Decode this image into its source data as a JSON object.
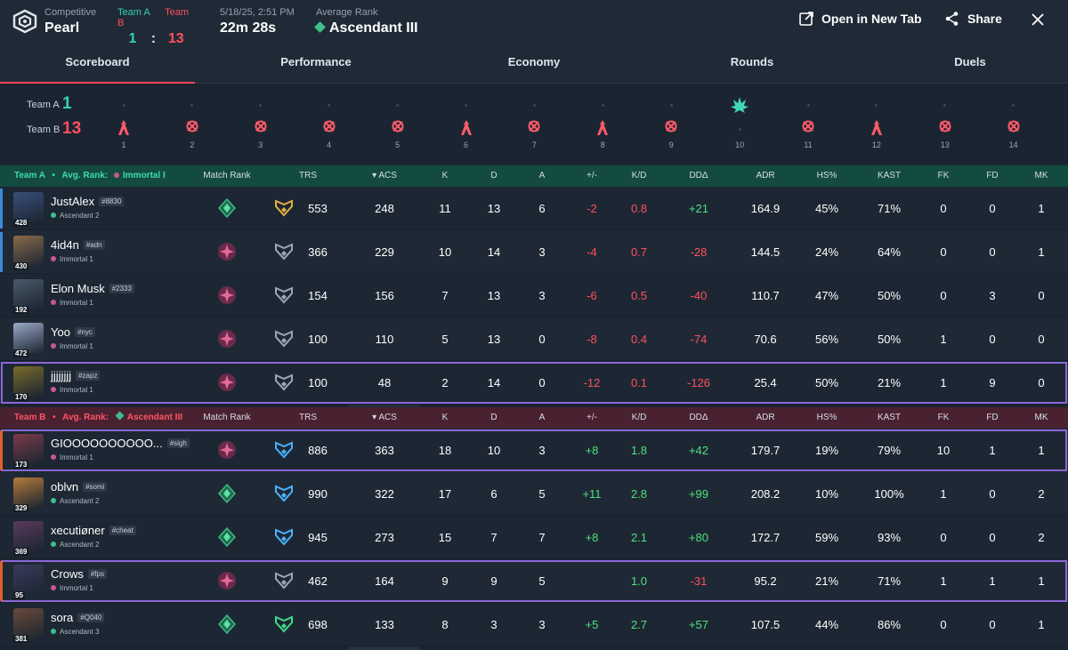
{
  "header": {
    "mode_label": "Competitive",
    "map": "Pearl",
    "teamA_label": "Team A",
    "teamB_label": "Team B",
    "scoreA": "1",
    "sep": ":",
    "scoreB": "13",
    "datetime": "5/18/25, 2:51 PM",
    "duration": "22m 28s",
    "avg_rank_label": "Average Rank",
    "avg_rank": "Ascendant III",
    "open_tab": "Open in New Tab",
    "share": "Share"
  },
  "tabs": [
    "Scoreboard",
    "Performance",
    "Economy",
    "Rounds",
    "Duels"
  ],
  "timeline": {
    "teamA_label": "Team A",
    "teamA_score": "1",
    "teamB_label": "Team B",
    "teamB_score": "13",
    "rounds": [
      {
        "num": "1",
        "winner": "B",
        "icon": "elimination-icon"
      },
      {
        "num": "2",
        "winner": "B",
        "icon": "defuse-icon"
      },
      {
        "num": "3",
        "winner": "B",
        "icon": "defuse-icon"
      },
      {
        "num": "4",
        "winner": "B",
        "icon": "defuse-icon"
      },
      {
        "num": "5",
        "winner": "B",
        "icon": "defuse-icon"
      },
      {
        "num": "6",
        "winner": "B",
        "icon": "elimination-icon"
      },
      {
        "num": "7",
        "winner": "B",
        "icon": "defuse-icon"
      },
      {
        "num": "8",
        "winner": "B",
        "icon": "elimination-icon"
      },
      {
        "num": "9",
        "winner": "B",
        "icon": "defuse-icon"
      },
      {
        "num": "10",
        "winner": "A",
        "icon": "spike-detonate-icon"
      },
      {
        "num": "11",
        "winner": "B",
        "icon": "defuse-icon"
      },
      {
        "num": "12",
        "winner": "B",
        "icon": "elimination-icon"
      },
      {
        "num": "13",
        "winner": "B",
        "icon": "defuse-icon"
      },
      {
        "num": "14",
        "winner": "B",
        "icon": "defuse-icon"
      }
    ]
  },
  "columns": {
    "match_rank": "Match Rank",
    "trs": "TRS",
    "acs": "ACS",
    "k": "K",
    "d": "D",
    "a": "A",
    "pm": "+/-",
    "kd": "K/D",
    "dd": "DDΔ",
    "adr": "ADR",
    "hs": "HS%",
    "kast": "KAST",
    "fk": "FK",
    "fd": "FD",
    "mk": "MK"
  },
  "teamA": {
    "label": "Team A",
    "bullet": "•",
    "avg_label": "Avg. Rank:",
    "avg_rank": "Immortal I",
    "players": [
      {
        "name": "JustAlex",
        "tag": "#8830",
        "level": "428",
        "rank": "Ascendant 2",
        "trs": "553",
        "acs": "248",
        "k": "11",
        "d": "13",
        "a": "6",
        "pm": "-2",
        "kd": "0.8",
        "dd": "+21",
        "adr": "164.9",
        "hs": "45%",
        "kast": "71%",
        "fk": "0",
        "fd": "0",
        "mk": "1"
      },
      {
        "name": "4id4n",
        "tag": "#adn",
        "level": "430",
        "rank": "Immortal 1",
        "trs": "366",
        "acs": "229",
        "k": "10",
        "d": "14",
        "a": "3",
        "pm": "-4",
        "kd": "0.7",
        "dd": "-28",
        "adr": "144.5",
        "hs": "24%",
        "kast": "64%",
        "fk": "0",
        "fd": "0",
        "mk": "1"
      },
      {
        "name": "Elon Musk",
        "tag": "#2333",
        "level": "192",
        "rank": "Immortal 1",
        "trs": "154",
        "acs": "156",
        "k": "7",
        "d": "13",
        "a": "3",
        "pm": "-6",
        "kd": "0.5",
        "dd": "-40",
        "adr": "110.7",
        "hs": "47%",
        "kast": "50%",
        "fk": "0",
        "fd": "3",
        "mk": "0"
      },
      {
        "name": "Yoo",
        "tag": "#nyc",
        "level": "472",
        "rank": "Immortal 1",
        "trs": "100",
        "acs": "110",
        "k": "5",
        "d": "13",
        "a": "0",
        "pm": "-8",
        "kd": "0.4",
        "dd": "-74",
        "adr": "70.6",
        "hs": "56%",
        "kast": "50%",
        "fk": "1",
        "fd": "0",
        "mk": "0"
      },
      {
        "name": "jjjjjjjj",
        "tag": "#zapz",
        "level": "170",
        "rank": "Immortal 1",
        "trs": "100",
        "acs": "48",
        "k": "2",
        "d": "14",
        "a": "0",
        "pm": "-12",
        "kd": "0.1",
        "dd": "-126",
        "adr": "25.4",
        "hs": "50%",
        "kast": "21%",
        "fk": "1",
        "fd": "9",
        "mk": "0"
      }
    ]
  },
  "teamB": {
    "label": "Team B",
    "bullet": "•",
    "avg_label": "Avg. Rank:",
    "avg_rank": "Ascendant III",
    "players": [
      {
        "name": "GIOOOOOOOOOO...",
        "tag": "#sigh",
        "level": "173",
        "rank": "Immortal 1",
        "trs": "886",
        "acs": "363",
        "k": "18",
        "d": "10",
        "a": "3",
        "pm": "+8",
        "kd": "1.8",
        "dd": "+42",
        "adr": "179.7",
        "hs": "19%",
        "kast": "79%",
        "fk": "10",
        "fd": "1",
        "mk": "1"
      },
      {
        "name": "oblvn",
        "tag": "#somi",
        "level": "329",
        "rank": "Ascendant 2",
        "trs": "990",
        "acs": "322",
        "k": "17",
        "d": "6",
        "a": "5",
        "pm": "+11",
        "kd": "2.8",
        "dd": "+99",
        "adr": "208.2",
        "hs": "10%",
        "kast": "100%",
        "fk": "1",
        "fd": "0",
        "mk": "2"
      },
      {
        "name": "xecutiøner",
        "tag": "#cheat",
        "level": "369",
        "rank": "Ascendant 2",
        "trs": "945",
        "acs": "273",
        "k": "15",
        "d": "7",
        "a": "7",
        "pm": "+8",
        "kd": "2.1",
        "dd": "+80",
        "adr": "172.7",
        "hs": "59%",
        "kast": "93%",
        "fk": "0",
        "fd": "0",
        "mk": "2"
      },
      {
        "name": "Crows",
        "tag": "#fps",
        "level": "95",
        "rank": "Immortal 1",
        "trs": "462",
        "acs": "164",
        "k": "9",
        "d": "9",
        "a": "5",
        "pm": "",
        "kd": "1.0",
        "dd": "-31",
        "adr": "95.2",
        "hs": "21%",
        "kast": "71%",
        "fk": "1",
        "fd": "1",
        "mk": "1"
      },
      {
        "name": "sora",
        "tag": "#Q040",
        "level": "381",
        "rank": "Ascendant 3",
        "trs": "698",
        "acs": "133",
        "k": "8",
        "d": "3",
        "a": "3",
        "pm": "+5",
        "kd": "2.7",
        "dd": "+57",
        "adr": "107.5",
        "hs": "44%",
        "kast": "86%",
        "fk": "0",
        "fd": "0",
        "mk": "1"
      }
    ]
  },
  "colors": {
    "teamA": "#33d1b0",
    "teamB": "#ff4f5f",
    "positive": "#4ee07e",
    "negative": "#ff4f5f",
    "highlight": "#8b67d8"
  }
}
